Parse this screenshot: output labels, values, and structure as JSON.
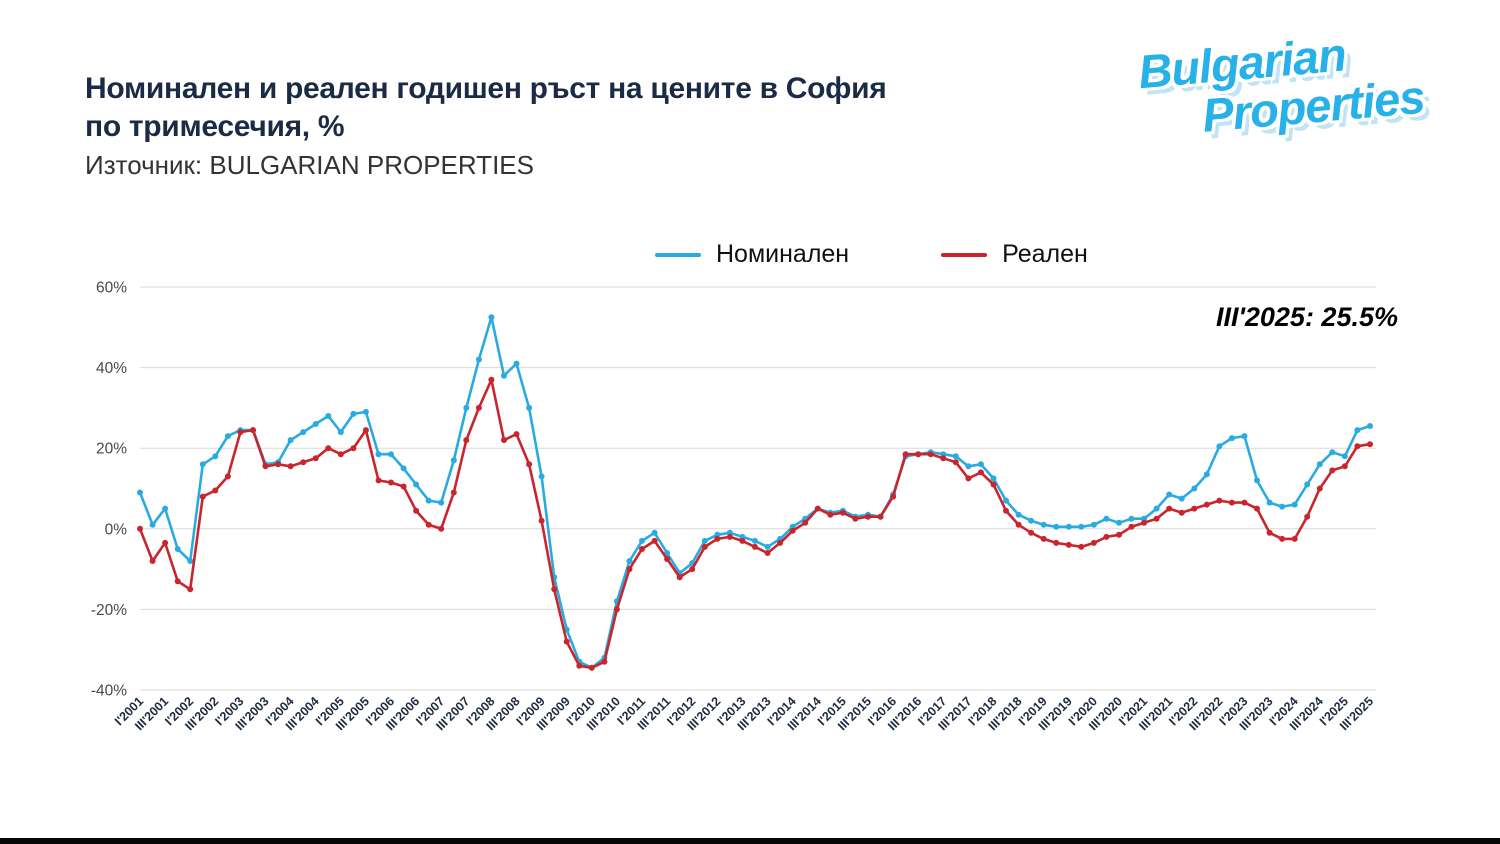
{
  "page": {
    "title_line1": "Номинален и реален годишен ръст на цените в София",
    "title_line2": "по тримесечия, %",
    "source": "Източник: BULGARIAN PROPERTIES",
    "logo_line1": "Bulgarian",
    "logo_line2": "Properties"
  },
  "chart_data": {
    "type": "line",
    "title": "Номинален и реален годишен ръст на цените в София по тримесечия, %",
    "xlabel": "",
    "ylabel": "",
    "ylim": [
      -40,
      60
    ],
    "yticks": [
      -40,
      -20,
      0,
      20,
      40,
      60
    ],
    "ytick_suffix": "%",
    "grid": "horizontal",
    "legend_position": "top-center",
    "x_tick_step": 2,
    "annotation": {
      "text": "III'2025: 25.5%",
      "target": "III'2025",
      "value": 25.5
    },
    "x": [
      "I'2001",
      "II'2001",
      "III'2001",
      "IV'2001",
      "I'2002",
      "II'2002",
      "III'2002",
      "IV'2002",
      "I'2003",
      "II'2003",
      "III'2003",
      "IV'2003",
      "I'2004",
      "II'2004",
      "III'2004",
      "IV'2004",
      "I'2005",
      "II'2005",
      "III'2005",
      "IV'2005",
      "I'2006",
      "II'2006",
      "III'2006",
      "IV'2006",
      "I'2007",
      "II'2007",
      "III'2007",
      "IV'2007",
      "I'2008",
      "II'2008",
      "III'2008",
      "IV'2008",
      "I'2009",
      "II'2009",
      "III'2009",
      "IV'2009",
      "I'2010",
      "II'2010",
      "III'2010",
      "IV'2010",
      "I'2011",
      "II'2011",
      "III'2011",
      "IV'2011",
      "I'2012",
      "II'2012",
      "III'2012",
      "IV'2012",
      "I'2013",
      "II'2013",
      "III'2013",
      "IV'2013",
      "I'2014",
      "II'2014",
      "III'2014",
      "IV'2014",
      "I'2015",
      "II'2015",
      "III'2015",
      "IV'2015",
      "I'2016",
      "II'2016",
      "III'2016",
      "IV'2016",
      "I'2017",
      "II'2017",
      "III'2017",
      "IV'2017",
      "I'2018",
      "II'2018",
      "III'2018",
      "IV'2018",
      "I'2019",
      "II'2019",
      "III'2019",
      "IV'2019",
      "I'2020",
      "II'2020",
      "III'2020",
      "IV'2020",
      "I'2021",
      "II'2021",
      "III'2021",
      "IV'2021",
      "I'2022",
      "II'2022",
      "III'2022",
      "IV'2022",
      "I'2023",
      "II'2023",
      "III'2023",
      "IV'2023",
      "I'2024",
      "II'2024",
      "III'2024",
      "IV'2024",
      "I'2025",
      "II'2025",
      "III'2025"
    ],
    "series": [
      {
        "name": "Номинален",
        "color": "#29abe2",
        "values": [
          9,
          1,
          5,
          -5,
          -8,
          16,
          18,
          23,
          24.5,
          24.5,
          16,
          16.5,
          22,
          24,
          26,
          28,
          24,
          28.5,
          29,
          18.5,
          18.5,
          15,
          11,
          7,
          6.5,
          17,
          30,
          42,
          52.5,
          38,
          41,
          30,
          13,
          -12,
          -25,
          -33,
          -34.5,
          -32,
          -18,
          -8,
          -3,
          -1,
          -6,
          -11,
          -8.5,
          -3,
          -1.5,
          -1,
          -2,
          -3,
          -4.5,
          -2.5,
          0.5,
          2.5,
          5,
          4,
          4.5,
          3,
          3.5,
          3,
          8.5,
          18,
          18.5,
          19,
          18.5,
          18,
          15.5,
          16,
          12.5,
          7,
          3.5,
          2,
          1,
          0.5,
          0.5,
          0.5,
          1,
          2.5,
          1.5,
          2.5,
          2.5,
          5,
          8.5,
          7.5,
          10,
          13.5,
          20.5,
          22.5,
          23,
          12,
          6.5,
          5.5,
          6,
          11,
          16,
          19,
          18,
          24.5,
          25.5
        ]
      },
      {
        "name": "Реален",
        "color": "#c9252d",
        "values": [
          0,
          -8,
          -3.5,
          -13,
          -15,
          8,
          9.5,
          13,
          24,
          24.5,
          15.5,
          16,
          15.5,
          16.5,
          17.5,
          20,
          18.5,
          20,
          24.5,
          12,
          11.5,
          10.5,
          4.5,
          1,
          0,
          9,
          22,
          30,
          37,
          22,
          23.5,
          16,
          2,
          -15,
          -28,
          -34,
          -34.5,
          -33,
          -20,
          -10,
          -5,
          -3,
          -7.5,
          -12,
          -10,
          -4.5,
          -2.5,
          -2,
          -3,
          -4.5,
          -6,
          -3.5,
          -0.5,
          1.5,
          5,
          3.5,
          4,
          2.5,
          3,
          3,
          8,
          18.5,
          18.5,
          18.5,
          17.5,
          16.5,
          12.5,
          14,
          11,
          4.5,
          1,
          -1,
          -2.5,
          -3.5,
          -4,
          -4.5,
          -3.5,
          -2,
          -1.5,
          0.5,
          1.5,
          2.5,
          5,
          4,
          5,
          6,
          7,
          6.5,
          6.5,
          5,
          -1,
          -2.5,
          -2.5,
          3,
          10,
          14.5,
          15.5,
          20.5,
          21
        ]
      }
    ]
  }
}
